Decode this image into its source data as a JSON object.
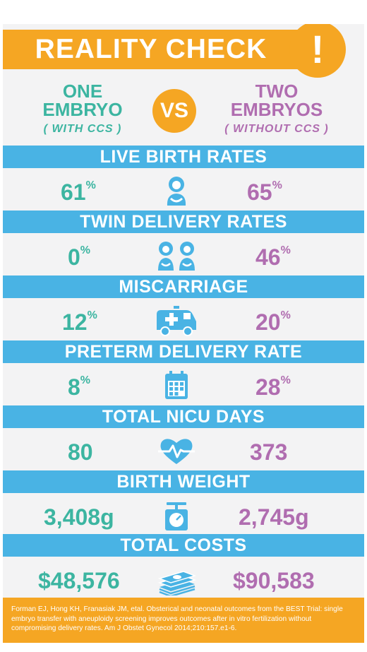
{
  "title": "REALITY CHECK",
  "alert_symbol": "!",
  "left": {
    "name": "ONE\nEMBRYO",
    "sub": "( WITH CCS )"
  },
  "vs": "VS",
  "right": {
    "name": "TWO\nEMBRYOS",
    "sub": "( WITHOUT CCS )"
  },
  "sections": [
    {
      "label": "LIVE BIRTH RATES",
      "left": "61",
      "left_unit": "%",
      "right": "65",
      "right_unit": "%",
      "icon": "baby-icon"
    },
    {
      "label": "TWIN DELIVERY RATES",
      "left": "0",
      "left_unit": "%",
      "right": "46",
      "right_unit": "%",
      "icon": "twin-babies-icon"
    },
    {
      "label": "MISCARRIAGE",
      "left": "12",
      "left_unit": "%",
      "right": "20",
      "right_unit": "%",
      "icon": "ambulance-icon"
    },
    {
      "label": "PRETERM DELIVERY RATE",
      "left": "8",
      "left_unit": "%",
      "right": "28",
      "right_unit": "%",
      "icon": "calendar-icon"
    },
    {
      "label": "TOTAL NICU DAYS",
      "left": "80",
      "left_unit": "",
      "right": "373",
      "right_unit": "",
      "icon": "heartbeat-icon"
    },
    {
      "label": "BIRTH WEIGHT",
      "left": "3,408g",
      "left_unit": "",
      "right": "2,745g",
      "right_unit": "",
      "icon": "scale-icon"
    },
    {
      "label": "TOTAL COSTS",
      "left": "$48,576",
      "left_unit": "",
      "right": "$90,583",
      "right_unit": "",
      "icon": "money-stack-icon"
    }
  ],
  "footer": "Forman EJ, Hong KH, Franasiak JM, etal. Obsterical and neonatal outcomes from the BEST Trial: single embryo transfer with aneuploidy screening improves outcomes after in vitro fertilization without compromising delivery rates. Am J Obstet Gynecol 2014;210:157.e1-6.",
  "colors": {
    "orange": "#f5a623",
    "blue": "#49b3e4",
    "teal": "#3cb5a1",
    "purple": "#b06db0",
    "background": "#f3f3f4"
  }
}
